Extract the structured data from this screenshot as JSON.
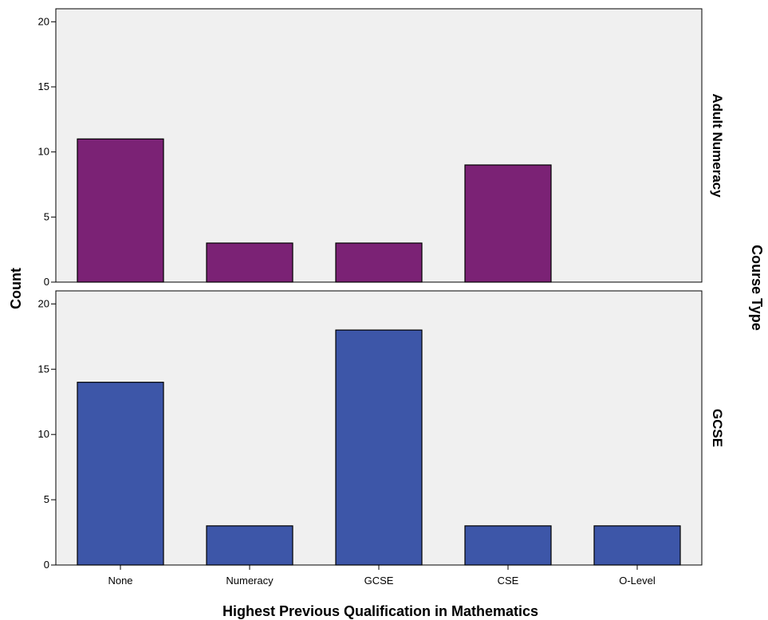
{
  "chart_data": {
    "type": "bar",
    "categories": [
      "None",
      "Numeracy",
      "GCSE",
      "CSE",
      "O-Level"
    ],
    "xlabel": "Highest Previous Qualification in Mathematics",
    "ylabel": "Count",
    "panel_axis_label": "Course Type",
    "ylim": [
      0,
      21
    ],
    "yticks": [
      0,
      5,
      10,
      15,
      20
    ],
    "grid": false,
    "panels": [
      {
        "name": "Adult Numeracy",
        "color": "#7b2275",
        "values": [
          11,
          3,
          3,
          9,
          0
        ]
      },
      {
        "name": "GCSE",
        "color": "#3d56a8",
        "values": [
          14,
          3,
          18,
          3,
          3
        ]
      }
    ],
    "plot_background": "#f0f0f0"
  }
}
